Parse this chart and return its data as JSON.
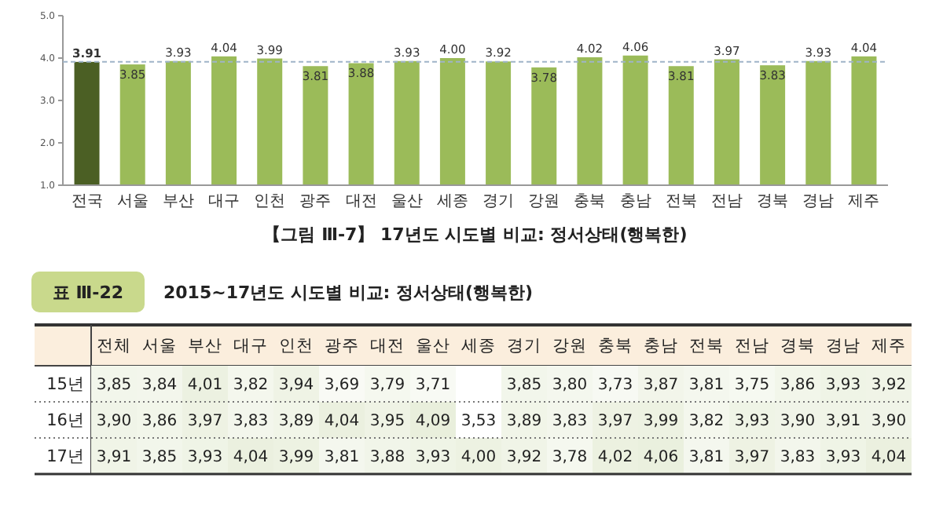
{
  "chart_data": [
    {
      "type": "bar",
      "title": "【그림 Ⅲ-7】 17년도 시도별 비교: 정서상태(행복한)",
      "categories": [
        "전국",
        "서울",
        "부산",
        "대구",
        "인천",
        "광주",
        "대전",
        "울산",
        "세종",
        "경기",
        "강원",
        "충북",
        "충남",
        "전북",
        "전남",
        "경북",
        "경남",
        "제주"
      ],
      "values": [
        3.91,
        3.85,
        3.93,
        4.04,
        3.99,
        3.81,
        3.88,
        3.93,
        4.0,
        3.92,
        3.78,
        4.02,
        4.06,
        3.81,
        3.97,
        3.83,
        3.93,
        4.04
      ],
      "value_labels": [
        "3.91",
        "3.85",
        "3.93",
        "4.04",
        "3.99",
        "3.81",
        "3.88",
        "3.93",
        "4.00",
        "3.92",
        "3.78",
        "4.02",
        "4.06",
        "3.81",
        "3.97",
        "3.83",
        "3.93",
        "4.04"
      ],
      "colors": [
        "#4b5f24",
        "#9bbb59",
        "#9bbb59",
        "#9bbb59",
        "#9bbb59",
        "#9bbb59",
        "#9bbb59",
        "#9bbb59",
        "#9bbb59",
        "#9bbb59",
        "#9bbb59",
        "#9bbb59",
        "#9bbb59",
        "#9bbb59",
        "#9bbb59",
        "#9bbb59",
        "#9bbb59",
        "#9bbb59"
      ],
      "ylim": [
        1,
        5
      ],
      "yticks": [
        {
          "value": 1,
          "label": "1.0"
        },
        {
          "value": 2,
          "label": "2.0"
        },
        {
          "value": 3,
          "label": "3.0"
        },
        {
          "value": 4,
          "label": "4.0"
        },
        {
          "value": 5,
          "label": "5.0"
        }
      ],
      "ref_lines": [
        {
          "axis": "y",
          "value": 3.91,
          "color": "#9fb4c8",
          "line_style": "dashed"
        }
      ],
      "grid": false
    },
    {
      "type": "heatmap",
      "title": "표 Ⅲ-22",
      "subtitle": "2015~17년도 시도별 비교: 정서상태(행복한)",
      "categories": [
        "전체",
        "서울",
        "부산",
        "대구",
        "인천",
        "광주",
        "대전",
        "울산",
        "세종",
        "경기",
        "강원",
        "충북",
        "충남",
        "전북",
        "전남",
        "경북",
        "경남",
        "제주"
      ],
      "y_categories": [
        "15년",
        "16년",
        "17년"
      ],
      "cells": [
        [
          3.85,
          3.84,
          4.01,
          3.82,
          3.94,
          3.69,
          3.79,
          3.71,
          null,
          3.85,
          3.8,
          3.73,
          3.87,
          3.81,
          3.75,
          3.86,
          3.93,
          3.92
        ],
        [
          3.9,
          3.86,
          3.97,
          3.83,
          3.89,
          4.04,
          3.95,
          4.09,
          3.53,
          3.89,
          3.83,
          3.97,
          3.99,
          3.82,
          3.93,
          3.9,
          3.91,
          3.9
        ],
        [
          3.91,
          3.85,
          3.93,
          4.04,
          3.99,
          3.81,
          3.88,
          3.93,
          4.0,
          3.92,
          3.78,
          4.02,
          4.06,
          3.81,
          3.97,
          3.83,
          3.93,
          4.04
        ]
      ],
      "cell_labels": [
        [
          "3,85",
          "3,84",
          "4,01",
          "3,82",
          "3,94",
          "3,69",
          "3,79",
          "3,71",
          null,
          "3,85",
          "3,80",
          "3,73",
          "3,87",
          "3,81",
          "3,75",
          "3,86",
          "3,93",
          "3,92"
        ],
        [
          "3,90",
          "3,86",
          "3,97",
          "3,83",
          "3,89",
          "4,04",
          "3,95",
          "4,09",
          "3,53",
          "3,89",
          "3,83",
          "3,97",
          "3,99",
          "3,82",
          "3,93",
          "3,90",
          "3,91",
          "3,90"
        ],
        [
          "3,91",
          "3,85",
          "3,93",
          "4,04",
          "3,99",
          "3,81",
          "3,88",
          "3,93",
          "4,00",
          "3,92",
          "3,78",
          "4,02",
          "4,06",
          "3,81",
          "3,97",
          "3,83",
          "3,93",
          "4,04"
        ]
      ]
    }
  ]
}
